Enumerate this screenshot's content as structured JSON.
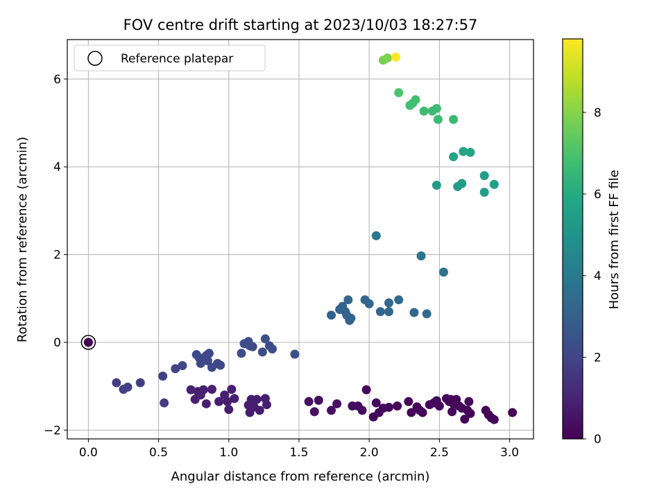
{
  "chart_data": {
    "type": "scatter",
    "title": "FOV centre drift starting at 2023/10/03 18:27:57",
    "xlabel": "Angular distance from reference (arcmin)",
    "ylabel": "Rotation from reference (arcmin)",
    "xlim": [
      -0.15,
      3.17
    ],
    "ylim": [
      -2.2,
      6.9
    ],
    "xticks": [
      0.0,
      0.5,
      1.0,
      1.5,
      2.0,
      2.5,
      3.0
    ],
    "xtick_labels": [
      "0.0",
      "0.5",
      "1.0",
      "1.5",
      "2.0",
      "2.5",
      "3.0"
    ],
    "yticks": [
      -2,
      0,
      2,
      4,
      6
    ],
    "ytick_labels": [
      "−2",
      "0",
      "2",
      "4",
      "6"
    ],
    "grid": true,
    "legend": {
      "position": "top-left",
      "entries": [
        "Reference platepar"
      ]
    },
    "colorbar": {
      "label": "Hours from first FF file",
      "range": [
        0,
        9.8
      ],
      "ticks": [
        0,
        2,
        4,
        6,
        8
      ],
      "tick_labels": [
        "0",
        "2",
        "4",
        "6",
        "8"
      ],
      "colormap": "viridis"
    },
    "reference_point": {
      "x": 0.0,
      "y": 0.0
    },
    "points": [
      {
        "x": 0.0,
        "y": 0.0,
        "c": 0.0
      },
      {
        "x": 1.98,
        "y": -1.08,
        "c": 0.2
      },
      {
        "x": 2.03,
        "y": -1.7,
        "c": 0.15
      },
      {
        "x": 2.05,
        "y": -1.38,
        "c": 0.25
      },
      {
        "x": 2.07,
        "y": -1.6,
        "c": 0.2
      },
      {
        "x": 2.1,
        "y": -1.5,
        "c": 0.2
      },
      {
        "x": 2.14,
        "y": -1.48,
        "c": 0.2
      },
      {
        "x": 2.2,
        "y": -1.45,
        "c": 0.2
      },
      {
        "x": 2.28,
        "y": -1.35,
        "c": 0.2
      },
      {
        "x": 2.3,
        "y": -1.6,
        "c": 0.15
      },
      {
        "x": 2.34,
        "y": -1.47,
        "c": 0.2
      },
      {
        "x": 2.36,
        "y": -1.55,
        "c": 0.2
      },
      {
        "x": 2.38,
        "y": -1.6,
        "c": 0.15
      },
      {
        "x": 2.43,
        "y": -1.42,
        "c": 0.2
      },
      {
        "x": 2.46,
        "y": -1.38,
        "c": 0.2
      },
      {
        "x": 2.48,
        "y": -1.33,
        "c": 0.2
      },
      {
        "x": 2.5,
        "y": -1.45,
        "c": 0.2
      },
      {
        "x": 2.55,
        "y": -1.28,
        "c": 0.2
      },
      {
        "x": 2.57,
        "y": -1.35,
        "c": 0.2
      },
      {
        "x": 2.58,
        "y": -1.3,
        "c": 0.2
      },
      {
        "x": 2.59,
        "y": -1.58,
        "c": 0.15
      },
      {
        "x": 2.6,
        "y": -1.4,
        "c": 0.2
      },
      {
        "x": 2.62,
        "y": -1.3,
        "c": 0.2
      },
      {
        "x": 2.64,
        "y": -1.45,
        "c": 0.2
      },
      {
        "x": 2.66,
        "y": -1.5,
        "c": 0.2
      },
      {
        "x": 2.68,
        "y": -1.75,
        "c": 0.1
      },
      {
        "x": 2.7,
        "y": -1.55,
        "c": 0.15
      },
      {
        "x": 2.71,
        "y": -1.35,
        "c": 0.2
      },
      {
        "x": 2.72,
        "y": -1.62,
        "c": 0.15
      },
      {
        "x": 2.83,
        "y": -1.55,
        "c": 0.1
      },
      {
        "x": 2.85,
        "y": -1.65,
        "c": 0.1
      },
      {
        "x": 2.87,
        "y": -1.72,
        "c": 0.1
      },
      {
        "x": 2.89,
        "y": -1.76,
        "c": 0.1
      },
      {
        "x": 3.02,
        "y": -1.6,
        "c": 0.1
      },
      {
        "x": 1.57,
        "y": -1.35,
        "c": 0.4
      },
      {
        "x": 1.61,
        "y": -1.58,
        "c": 0.4
      },
      {
        "x": 1.64,
        "y": -1.32,
        "c": 0.4
      },
      {
        "x": 1.73,
        "y": -1.55,
        "c": 0.4
      },
      {
        "x": 1.77,
        "y": -1.4,
        "c": 0.4
      },
      {
        "x": 1.88,
        "y": -1.45,
        "c": 0.35
      },
      {
        "x": 1.92,
        "y": -1.45,
        "c": 0.35
      },
      {
        "x": 1.95,
        "y": -1.55,
        "c": 0.35
      },
      {
        "x": 0.73,
        "y": -1.08,
        "c": 0.9
      },
      {
        "x": 0.76,
        "y": -1.3,
        "c": 0.85
      },
      {
        "x": 0.78,
        "y": -1.12,
        "c": 0.9
      },
      {
        "x": 0.8,
        "y": -1.2,
        "c": 0.9
      },
      {
        "x": 0.82,
        "y": -1.08,
        "c": 0.9
      },
      {
        "x": 0.84,
        "y": -1.4,
        "c": 0.85
      },
      {
        "x": 0.88,
        "y": -1.07,
        "c": 0.9
      },
      {
        "x": 0.93,
        "y": -1.35,
        "c": 0.85
      },
      {
        "x": 0.97,
        "y": -1.2,
        "c": 0.85
      },
      {
        "x": 0.99,
        "y": -1.35,
        "c": 0.85
      },
      {
        "x": 1.0,
        "y": -1.53,
        "c": 0.8
      },
      {
        "x": 1.02,
        "y": -1.07,
        "c": 0.85
      },
      {
        "x": 1.04,
        "y": -1.28,
        "c": 0.85
      },
      {
        "x": 1.14,
        "y": -1.43,
        "c": 0.8
      },
      {
        "x": 1.15,
        "y": -1.6,
        "c": 0.8
      },
      {
        "x": 1.16,
        "y": -1.3,
        "c": 0.8
      },
      {
        "x": 1.18,
        "y": -1.47,
        "c": 0.8
      },
      {
        "x": 1.2,
        "y": -1.3,
        "c": 0.8
      },
      {
        "x": 1.22,
        "y": -1.55,
        "c": 0.8
      },
      {
        "x": 1.26,
        "y": -1.28,
        "c": 0.8
      },
      {
        "x": 1.27,
        "y": -1.42,
        "c": 0.8
      },
      {
        "x": 0.2,
        "y": -0.92,
        "c": 1.8
      },
      {
        "x": 0.25,
        "y": -1.07,
        "c": 1.8
      },
      {
        "x": 0.28,
        "y": -1.02,
        "c": 1.8
      },
      {
        "x": 0.37,
        "y": -0.92,
        "c": 1.8
      },
      {
        "x": 0.53,
        "y": -0.77,
        "c": 1.9
      },
      {
        "x": 0.54,
        "y": -1.38,
        "c": 1.7
      },
      {
        "x": 0.62,
        "y": -0.6,
        "c": 2.0
      },
      {
        "x": 0.67,
        "y": -0.53,
        "c": 2.0
      },
      {
        "x": 0.77,
        "y": -0.28,
        "c": 2.1
      },
      {
        "x": 0.79,
        "y": -0.35,
        "c": 2.1
      },
      {
        "x": 0.8,
        "y": -0.48,
        "c": 2.1
      },
      {
        "x": 0.84,
        "y": -0.3,
        "c": 2.1
      },
      {
        "x": 0.85,
        "y": -0.42,
        "c": 2.1
      },
      {
        "x": 0.86,
        "y": -0.25,
        "c": 2.1
      },
      {
        "x": 0.88,
        "y": -0.57,
        "c": 2.1
      },
      {
        "x": 0.92,
        "y": -0.48,
        "c": 2.1
      },
      {
        "x": 0.94,
        "y": -0.52,
        "c": 2.1
      },
      {
        "x": 1.09,
        "y": -0.25,
        "c": 2.3
      },
      {
        "x": 1.11,
        "y": -0.03,
        "c": 2.3
      },
      {
        "x": 1.14,
        "y": 0.02,
        "c": 2.3
      },
      {
        "x": 1.15,
        "y": -0.08,
        "c": 2.3
      },
      {
        "x": 1.17,
        "y": -0.1,
        "c": 2.3
      },
      {
        "x": 1.24,
        "y": -0.22,
        "c": 2.3
      },
      {
        "x": 1.26,
        "y": 0.08,
        "c": 2.4
      },
      {
        "x": 1.29,
        "y": -0.08,
        "c": 2.3
      },
      {
        "x": 1.31,
        "y": -0.15,
        "c": 2.3
      },
      {
        "x": 1.47,
        "y": -0.27,
        "c": 2.4
      },
      {
        "x": 1.73,
        "y": 0.62,
        "c": 3.0
      },
      {
        "x": 1.79,
        "y": 0.75,
        "c": 3.1
      },
      {
        "x": 1.81,
        "y": 0.82,
        "c": 3.1
      },
      {
        "x": 1.83,
        "y": 0.7,
        "c": 3.1
      },
      {
        "x": 1.84,
        "y": 0.62,
        "c": 3.1
      },
      {
        "x": 1.85,
        "y": 0.97,
        "c": 3.2
      },
      {
        "x": 1.86,
        "y": 0.5,
        "c": 3.1
      },
      {
        "x": 1.87,
        "y": 0.55,
        "c": 3.1
      },
      {
        "x": 1.97,
        "y": 0.97,
        "c": 3.2
      },
      {
        "x": 2.0,
        "y": 0.88,
        "c": 3.2
      },
      {
        "x": 2.08,
        "y": 0.7,
        "c": 3.2
      },
      {
        "x": 2.14,
        "y": 0.9,
        "c": 3.3
      },
      {
        "x": 2.14,
        "y": 0.7,
        "c": 3.3
      },
      {
        "x": 2.21,
        "y": 0.97,
        "c": 3.3
      },
      {
        "x": 2.32,
        "y": 0.68,
        "c": 3.3
      },
      {
        "x": 2.41,
        "y": 0.65,
        "c": 3.4
      },
      {
        "x": 2.05,
        "y": 2.43,
        "c": 3.9
      },
      {
        "x": 2.37,
        "y": 1.97,
        "c": 3.8
      },
      {
        "x": 2.53,
        "y": 1.6,
        "c": 3.8
      },
      {
        "x": 2.48,
        "y": 3.58,
        "c": 5.3
      },
      {
        "x": 2.63,
        "y": 3.55,
        "c": 5.4
      },
      {
        "x": 2.66,
        "y": 3.62,
        "c": 5.4
      },
      {
        "x": 2.82,
        "y": 3.42,
        "c": 5.4
      },
      {
        "x": 2.82,
        "y": 3.8,
        "c": 5.5
      },
      {
        "x": 2.89,
        "y": 3.6,
        "c": 5.5
      },
      {
        "x": 2.6,
        "y": 4.23,
        "c": 5.8
      },
      {
        "x": 2.67,
        "y": 4.35,
        "c": 5.8
      },
      {
        "x": 2.72,
        "y": 4.33,
        "c": 5.8
      },
      {
        "x": 2.21,
        "y": 5.69,
        "c": 7.0
      },
      {
        "x": 2.29,
        "y": 5.4,
        "c": 6.8
      },
      {
        "x": 2.31,
        "y": 5.45,
        "c": 6.8
      },
      {
        "x": 2.33,
        "y": 5.53,
        "c": 6.8
      },
      {
        "x": 2.39,
        "y": 5.27,
        "c": 6.7
      },
      {
        "x": 2.45,
        "y": 5.27,
        "c": 6.7
      },
      {
        "x": 2.48,
        "y": 5.33,
        "c": 6.7
      },
      {
        "x": 2.49,
        "y": 5.08,
        "c": 6.6
      },
      {
        "x": 2.6,
        "y": 5.08,
        "c": 6.6
      },
      {
        "x": 2.1,
        "y": 6.43,
        "c": 7.8
      },
      {
        "x": 2.13,
        "y": 6.48,
        "c": 7.9
      },
      {
        "x": 2.19,
        "y": 6.5,
        "c": 9.8
      }
    ]
  }
}
